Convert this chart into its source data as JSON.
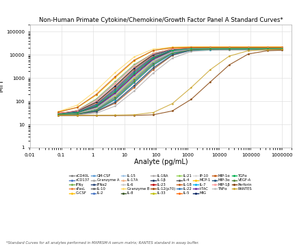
{
  "title": "Non-Human Primate Cytokine/Chemokine/Growth Factor Panel A Standard Curves*",
  "xlabel": "Analyte (pg/mL)",
  "ylabel": "MFI",
  "footnote": "*Standard Curves for all analytes performed in MXPRSM-A serum matrix; RANTES standard in assay buffer.",
  "background_color": "#FFFFFF",
  "grid_color": "#E0E0E0",
  "analytes": [
    {
      "name": "sCD40L",
      "color": "#808080",
      "ec50": 200,
      "min_mfi": 25,
      "max_mfi": 18000
    },
    {
      "name": "sCD137",
      "color": "#4472C4",
      "ec50": 150,
      "min_mfi": 28,
      "max_mfi": 20000
    },
    {
      "name": "IFNγ",
      "color": "#70AD47",
      "ec50": 50,
      "min_mfi": 25,
      "max_mfi": 17000
    },
    {
      "name": "sFasL",
      "color": "#ED7D31",
      "ec50": 100,
      "min_mfi": 30,
      "max_mfi": 19000
    },
    {
      "name": "G-CSF",
      "color": "#FFC000",
      "ec50": 80,
      "min_mfi": 28,
      "max_mfi": 21000
    },
    {
      "name": "GM-CSF",
      "color": "#5B9BD5",
      "ec50": 300,
      "min_mfi": 26,
      "max_mfi": 17500
    },
    {
      "name": "Granzyme A",
      "color": "#A5A5A5",
      "ec50": 250,
      "min_mfi": 24,
      "max_mfi": 16000
    },
    {
      "name": "IFNα2",
      "color": "#264478",
      "ec50": 180,
      "min_mfi": 27,
      "max_mfi": 18500
    },
    {
      "name": "IL-10",
      "color": "#636363",
      "ec50": 120,
      "min_mfi": 29,
      "max_mfi": 20000
    },
    {
      "name": "IL-2",
      "color": "#4472C4",
      "ec50": 90,
      "min_mfi": 27,
      "max_mfi": 19500
    },
    {
      "name": "IL-15",
      "color": "#9DC3E6",
      "ec50": 160,
      "min_mfi": 26,
      "max_mfi": 18000
    },
    {
      "name": "IL-17A",
      "color": "#F4B183",
      "ec50": 110,
      "min_mfi": 28,
      "max_mfi": 20500
    },
    {
      "name": "IL-6",
      "color": "#C9C9C9",
      "ec50": 70,
      "min_mfi": 25,
      "max_mfi": 17000
    },
    {
      "name": "Granzyme B",
      "color": "#FFD966",
      "ec50": 30,
      "min_mfi": 30,
      "max_mfi": 22000
    },
    {
      "name": "IL-8",
      "color": "#375623",
      "ec50": 60,
      "min_mfi": 27,
      "max_mfi": 19000
    },
    {
      "name": "IL-1RA",
      "color": "#AEAAAA",
      "ec50": 400,
      "min_mfi": 25,
      "max_mfi": 16500
    },
    {
      "name": "IL-1β",
      "color": "#203864",
      "ec50": 130,
      "min_mfi": 28,
      "max_mfi": 19000
    },
    {
      "name": "IL-23",
      "color": "#C00000",
      "ec50": 140,
      "min_mfi": 30,
      "max_mfi": 21000
    },
    {
      "name": "IL-12(p70)",
      "color": "#9E480E",
      "ec50": 220,
      "min_mfi": 26,
      "max_mfi": 17500
    },
    {
      "name": "IL-33",
      "color": "#BFBF00",
      "ec50": 170,
      "min_mfi": 29,
      "max_mfi": 20000
    },
    {
      "name": "IL-21",
      "color": "#92D050",
      "ec50": 190,
      "min_mfi": 26,
      "max_mfi": 17000
    },
    {
      "name": "IL-4",
      "color": "#595959",
      "ec50": 95,
      "min_mfi": 27,
      "max_mfi": 18500
    },
    {
      "name": "IL-18",
      "color": "#C65911",
      "ec50": 350,
      "min_mfi": 28,
      "max_mfi": 20000
    },
    {
      "name": "IL-22",
      "color": "#2E75B6",
      "ec50": 105,
      "min_mfi": 28,
      "max_mfi": 19000
    },
    {
      "name": "IL-5",
      "color": "#FF6600",
      "ec50": 85,
      "min_mfi": 29,
      "max_mfi": 20000
    },
    {
      "name": "IP-10",
      "color": "#D9D9D9",
      "ec50": 55,
      "min_mfi": 25,
      "max_mfi": 17500
    },
    {
      "name": "MCP-1",
      "color": "#FFC000",
      "ec50": 45,
      "min_mfi": 32,
      "max_mfi": 22000
    },
    {
      "name": "IL-7",
      "color": "#00B0F0",
      "ec50": 210,
      "min_mfi": 26,
      "max_mfi": 17000
    },
    {
      "name": "I-TAC",
      "color": "#7030A0",
      "ec50": 125,
      "min_mfi": 27,
      "max_mfi": 18000
    },
    {
      "name": "MIG",
      "color": "#002060",
      "ec50": 75,
      "min_mfi": 28,
      "max_mfi": 19000
    },
    {
      "name": "MIP-1α",
      "color": "#C55A11",
      "ec50": 40,
      "min_mfi": 30,
      "max_mfi": 21000
    },
    {
      "name": "MIP-3α",
      "color": "#1F4E79",
      "ec50": 280,
      "min_mfi": 27,
      "max_mfi": 18000
    },
    {
      "name": "MIP-1β",
      "color": "#FF9999",
      "ec50": 65,
      "min_mfi": 28,
      "max_mfi": 19500
    },
    {
      "name": "TNFα",
      "color": "#BFBFBF",
      "ec50": 145,
      "min_mfi": 26,
      "max_mfi": 18000
    },
    {
      "name": "TGFα",
      "color": "#00B050",
      "ec50": 115,
      "min_mfi": 27,
      "max_mfi": 19000
    },
    {
      "name": "VEGF-A",
      "color": "#548235",
      "ec50": 195,
      "min_mfi": 26,
      "max_mfi": 17500
    },
    {
      "name": "Perforin",
      "color": "#833C00",
      "ec50": 50000,
      "min_mfi": 24,
      "max_mfi": 16000
    },
    {
      "name": "RANTES",
      "color": "#C9A227",
      "ec50": 20000,
      "min_mfi": 25,
      "max_mfi": 17000
    }
  ],
  "x_points": [
    0.08,
    0.32,
    1.28,
    5.12,
    20.5,
    82,
    328,
    1311,
    5243,
    20972,
    83886,
    335544,
    1000000
  ],
  "hill_slope": 1.4
}
